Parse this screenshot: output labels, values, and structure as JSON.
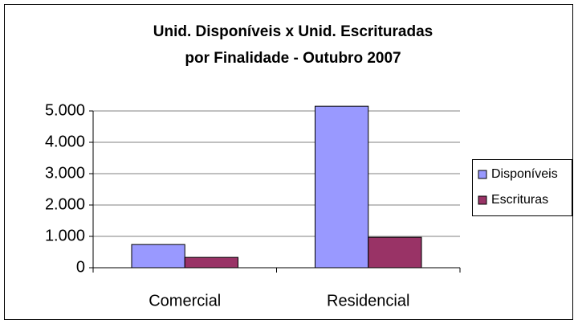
{
  "chart_data": {
    "type": "bar",
    "title": [
      "Unid. Disponíveis x Unid. Escrituradas",
      "por Finalidade - Outubro 2007"
    ],
    "categories": [
      "Comercial",
      "Residencial"
    ],
    "series": [
      {
        "name": "Disponíveis",
        "color": "#9999ff",
        "values": [
          740,
          5150
        ]
      },
      {
        "name": "Escrituras",
        "color": "#993366",
        "values": [
          330,
          970
        ]
      }
    ],
    "ylim": [
      0,
      5000
    ],
    "yticks": [
      0,
      {
        "value": 1000,
        "label": "1.000"
      },
      {
        "value": 2000,
        "label": "2.000"
      },
      {
        "value": 3000,
        "label": "3.000"
      },
      {
        "value": 4000,
        "label": "4.000"
      },
      {
        "value": 5000,
        "label": "5.000"
      }
    ],
    "grid": true,
    "legend": "right"
  }
}
